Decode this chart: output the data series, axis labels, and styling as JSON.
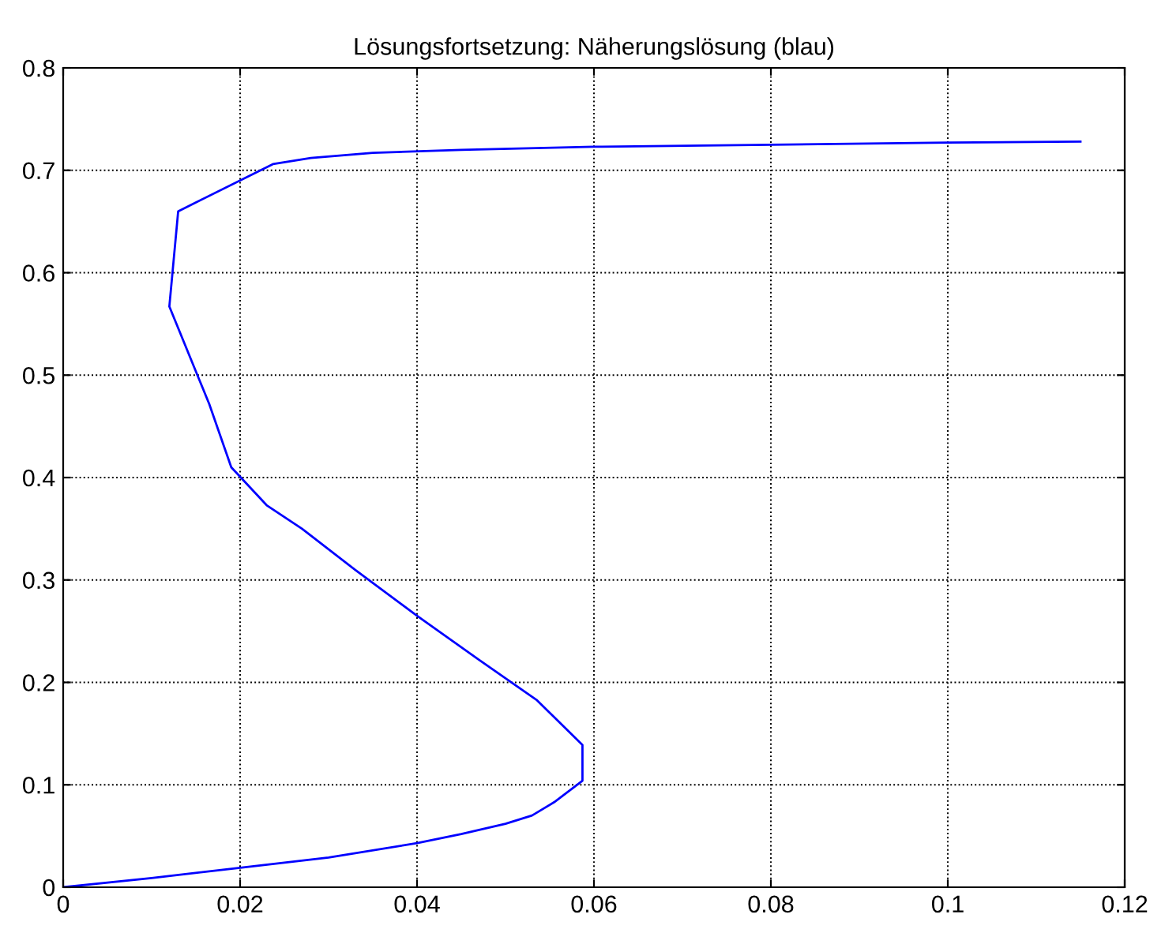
{
  "chart_data": {
    "type": "line",
    "title": "Lösungsfortsetzung: Näherungslösung (blau)",
    "series": [
      {
        "color": "#0000ff",
        "x": [
          0,
          0.01,
          0.02,
          0.03,
          0.04,
          0.045,
          0.05,
          0.053,
          0.0555,
          0.0587,
          0.0587,
          0.0535,
          0.047,
          0.04,
          0.033,
          0.027,
          0.023,
          0.019,
          0.0165,
          0.012,
          0.013,
          0.0237,
          0.028,
          0.035,
          0.045,
          0.06,
          0.08,
          0.1,
          0.115
        ],
        "values": [
          0,
          0.009,
          0.019,
          0.029,
          0.043,
          0.052,
          0.062,
          0.07,
          0.083,
          0.104,
          0.139,
          0.183,
          0.222,
          0.265,
          0.31,
          0.35,
          0.373,
          0.41,
          0.472,
          0.567,
          0.66,
          0.706,
          0.712,
          0.717,
          0.72,
          0.723,
          0.725,
          0.727,
          0.728
        ]
      }
    ],
    "xlim": [
      0,
      0.12
    ],
    "xticks": [
      0,
      0.02,
      0.04,
      0.06,
      0.08,
      0.1,
      0.12
    ],
    "ylim": [
      0,
      0.8
    ],
    "yticks": [
      0,
      0.1,
      0.2,
      0.3,
      0.4,
      0.5,
      0.6,
      0.7,
      0.8
    ],
    "grid": true,
    "marker": "none",
    "line_style": "solid"
  }
}
